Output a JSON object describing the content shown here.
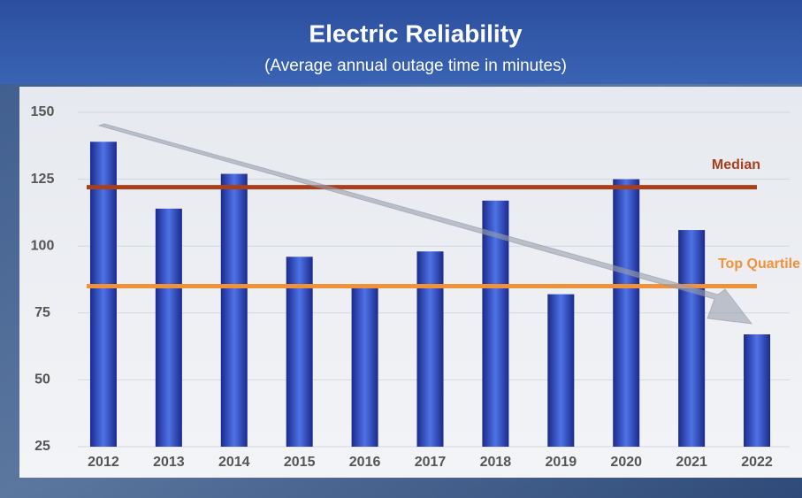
{
  "chart_data": {
    "type": "bar",
    "title": "Electric Reliability",
    "subtitle": "(Average annual outage time in minutes)",
    "categories": [
      "2012",
      "2013",
      "2014",
      "2015",
      "2016",
      "2017",
      "2018",
      "2019",
      "2020",
      "2021",
      "2022"
    ],
    "values": [
      139,
      114,
      127,
      96,
      85,
      98,
      117,
      82,
      125,
      106,
      67
    ],
    "color": "#2a48c0",
    "ylim": [
      25,
      150
    ],
    "yticks": [
      25,
      50,
      75,
      100,
      125,
      150
    ],
    "grid": true,
    "reference_lines": [
      {
        "name": "Median",
        "value": 122,
        "color": "#a8401c"
      },
      {
        "name": "Top Quartile",
        "value": 85,
        "color": "#f0923a"
      }
    ]
  }
}
